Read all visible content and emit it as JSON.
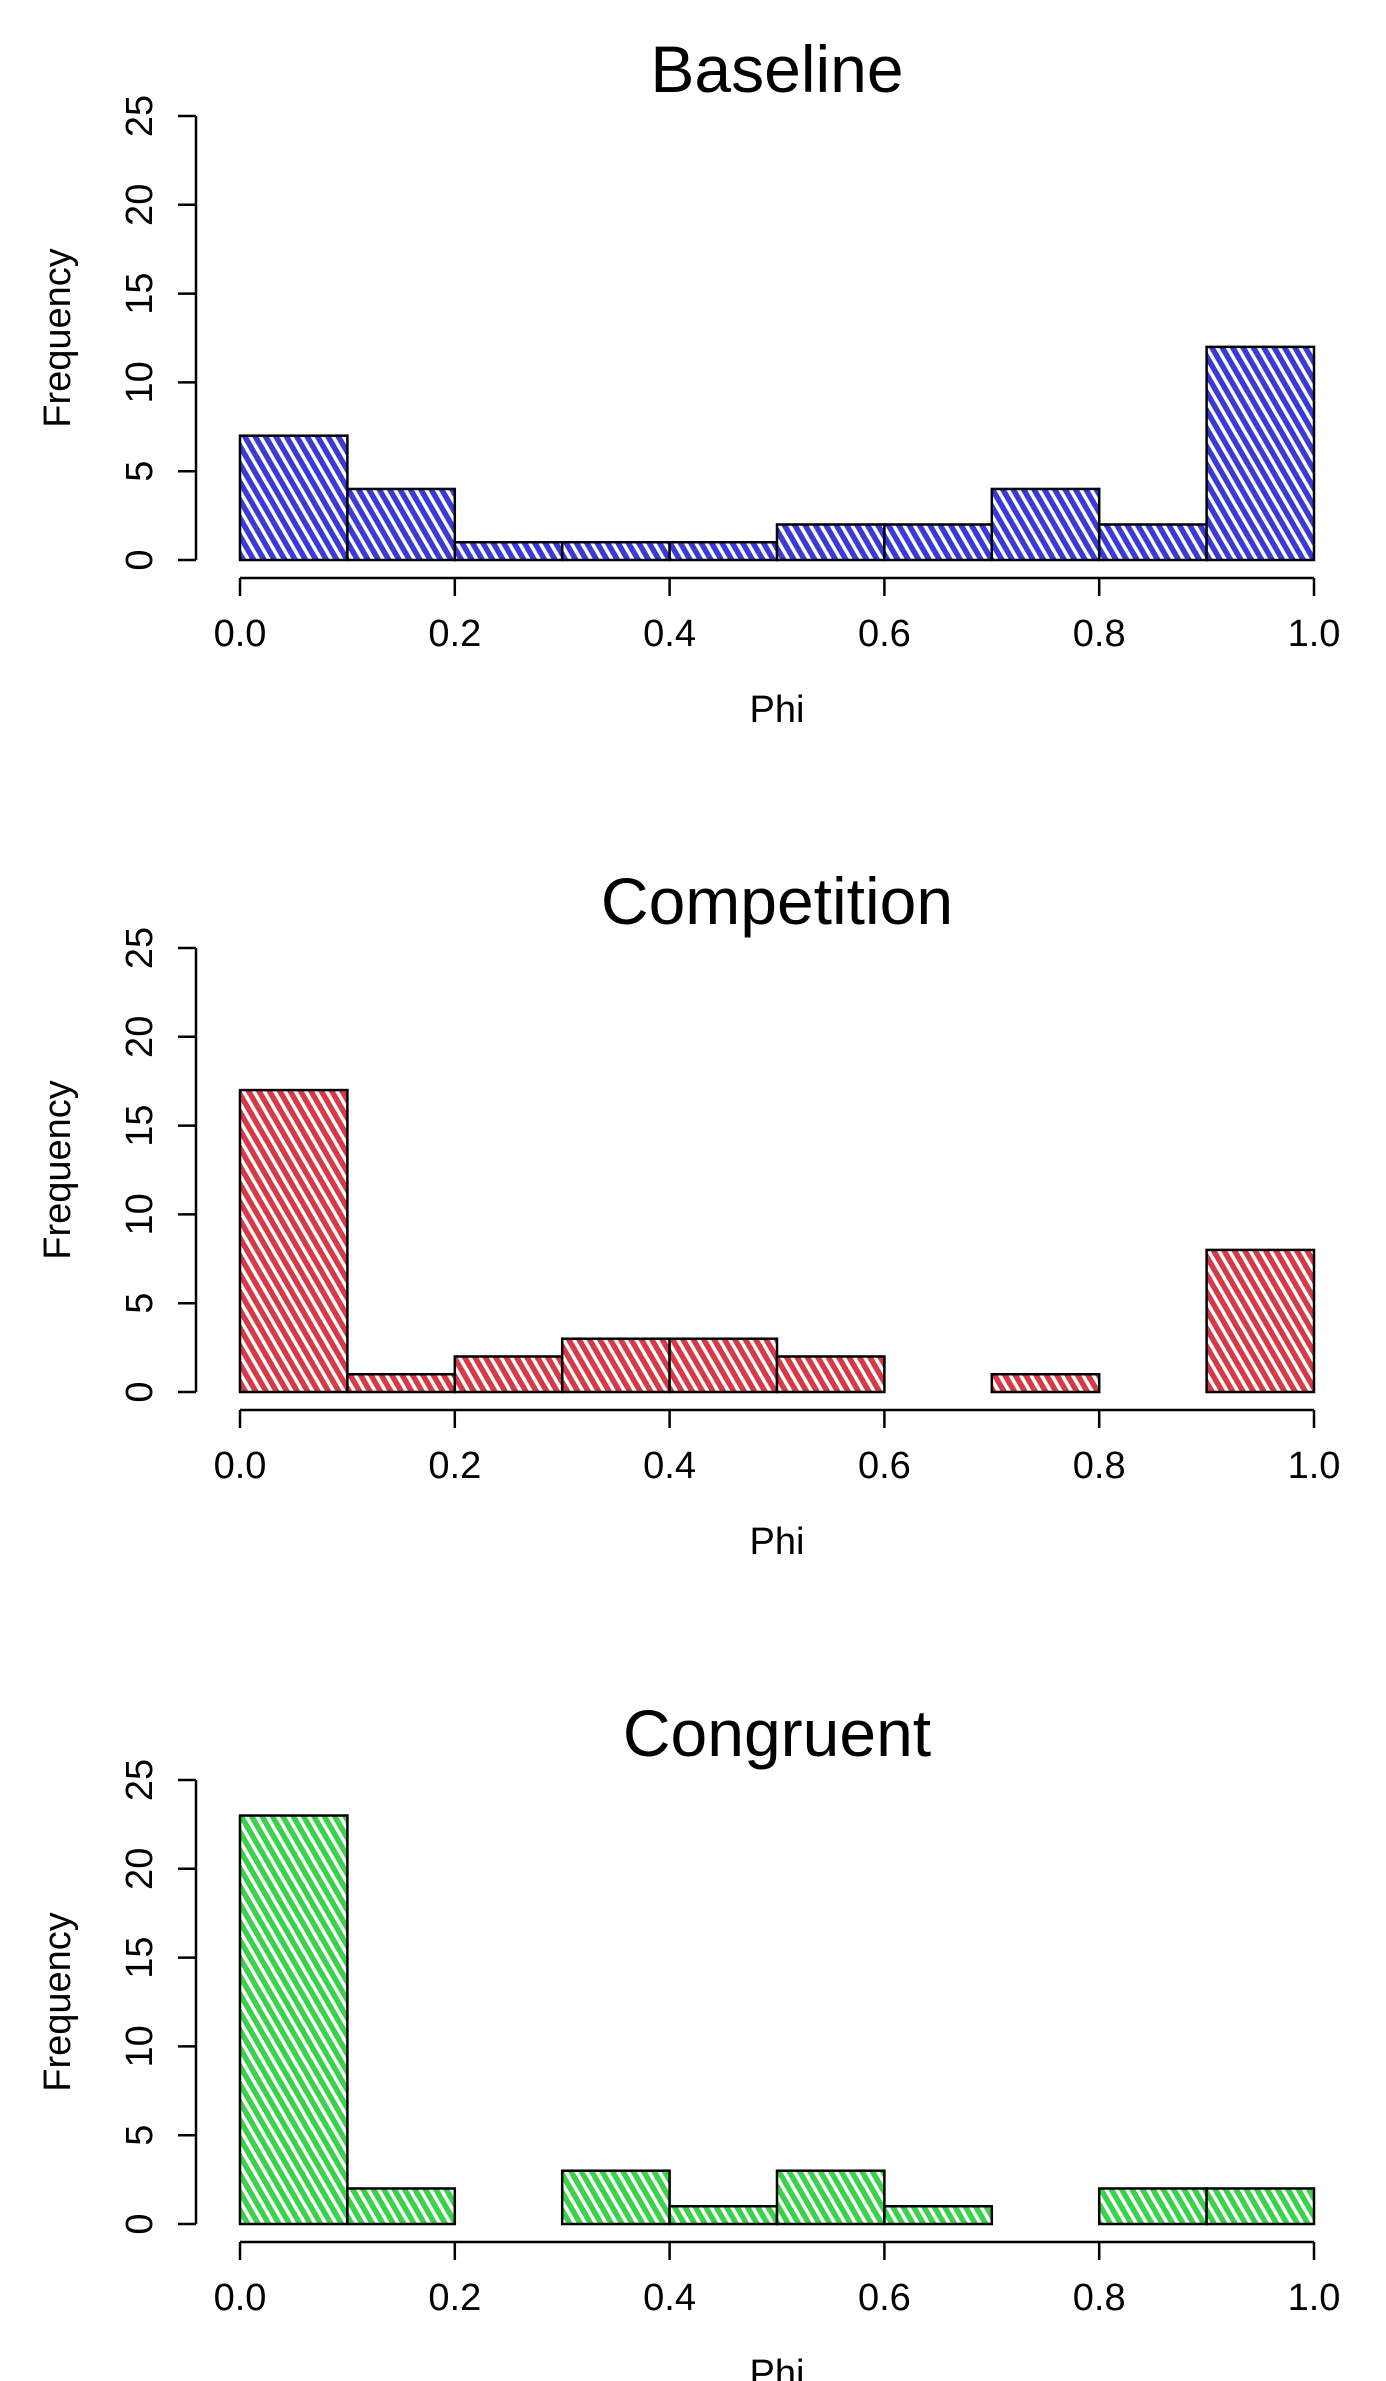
{
  "chart_data": [
    {
      "type": "bar",
      "title": "Baseline",
      "xlabel": "Phi",
      "ylabel": "Frequency",
      "bin_edges": [
        0.0,
        0.1,
        0.2,
        0.3,
        0.4,
        0.5,
        0.6,
        0.7,
        0.8,
        0.9,
        1.0
      ],
      "values": [
        7,
        4,
        1,
        1,
        1,
        2,
        2,
        4,
        2,
        12
      ],
      "xlim": [
        0,
        1
      ],
      "ylim": [
        0,
        25
      ],
      "xticks": [
        "0.0",
        "0.2",
        "0.4",
        "0.6",
        "0.8",
        "1.0"
      ],
      "yticks": [
        "0",
        "5",
        "10",
        "15",
        "20",
        "25"
      ],
      "color": "#3a3ad6",
      "grid": false
    },
    {
      "type": "bar",
      "title": "Competition",
      "xlabel": "Phi",
      "ylabel": "Frequency",
      "bin_edges": [
        0.0,
        0.1,
        0.2,
        0.3,
        0.4,
        0.5,
        0.6,
        0.7,
        0.8,
        0.9,
        1.0
      ],
      "values": [
        17,
        1,
        2,
        3,
        3,
        2,
        0,
        1,
        0,
        8
      ],
      "xlim": [
        0,
        1
      ],
      "ylim": [
        0,
        25
      ],
      "xticks": [
        "0.0",
        "0.2",
        "0.4",
        "0.6",
        "0.8",
        "1.0"
      ],
      "yticks": [
        "0",
        "5",
        "10",
        "15",
        "20",
        "25"
      ],
      "color": "#d63a46",
      "grid": false
    },
    {
      "type": "bar",
      "title": "Congruent",
      "xlabel": "Phi",
      "ylabel": "Frequency",
      "bin_edges": [
        0.0,
        0.1,
        0.2,
        0.3,
        0.4,
        0.5,
        0.6,
        0.7,
        0.8,
        0.9,
        1.0
      ],
      "values": [
        23,
        2,
        0,
        3,
        1,
        3,
        1,
        0,
        2,
        2
      ],
      "xlim": [
        0,
        1
      ],
      "ylim": [
        0,
        25
      ],
      "xticks": [
        "0.0",
        "0.2",
        "0.4",
        "0.6",
        "0.8",
        "1.0"
      ],
      "yticks": [
        "0",
        "5",
        "10",
        "15",
        "20",
        "25"
      ],
      "color": "#3ad24a",
      "grid": false
    }
  ]
}
